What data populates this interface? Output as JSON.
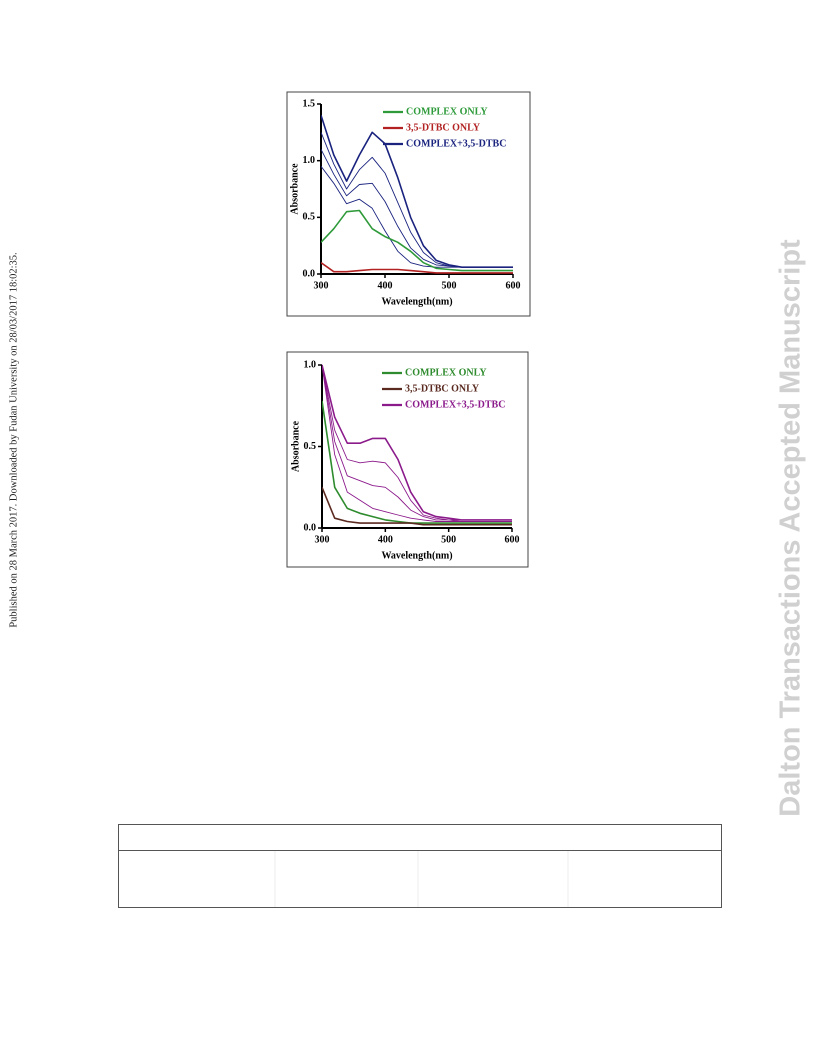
{
  "side_note": "Published on 28 March 2017. Downloaded by Fudan University on 28/03/2017 18:02:35.",
  "watermark": "Dalton Transactions Accepted Manuscript",
  "chart_data": [
    {
      "type": "line",
      "xlabel": "Wavelength(nm)",
      "ylabel": "Absorbance",
      "x": [
        300,
        320,
        340,
        360,
        380,
        400,
        420,
        440,
        460,
        480,
        500,
        520,
        540,
        560,
        580,
        600
      ],
      "xlim": [
        300,
        600
      ],
      "xticks": [
        300,
        400,
        500,
        600
      ],
      "ylim": [
        0,
        1.5
      ],
      "yticks": [
        {
          "value": 0,
          "label": "0.0"
        },
        0.5,
        {
          "value": 1,
          "label": "1.0"
        },
        1.5
      ],
      "grid": false,
      "legend": "upper right",
      "series": [
        {
          "name": "COMPLEX ONLY",
          "color": "#2e9a3a",
          "values": [
            0.28,
            0.4,
            0.55,
            0.56,
            0.4,
            0.33,
            0.28,
            0.2,
            0.1,
            0.05,
            0.04,
            0.03,
            0.03,
            0.03,
            0.03,
            0.03
          ]
        },
        {
          "name": "3,5-DTBC ONLY",
          "color": "#b22222",
          "values": [
            0.1,
            0.02,
            0.02,
            0.03,
            0.04,
            0.04,
            0.04,
            0.03,
            0.02,
            0.01,
            0.01,
            0.01,
            0.01,
            0.01,
            0.01,
            0.01
          ]
        },
        {
          "color": "#1a237e",
          "values": [
            0.95,
            0.8,
            0.62,
            0.66,
            0.58,
            0.38,
            0.2,
            0.1,
            0.07,
            0.06,
            0.06,
            0.06,
            0.06,
            0.06,
            0.06,
            0.06
          ]
        },
        {
          "color": "#1a237e",
          "values": [
            1.1,
            0.88,
            0.69,
            0.79,
            0.8,
            0.64,
            0.42,
            0.23,
            0.13,
            0.08,
            0.07,
            0.06,
            0.06,
            0.06,
            0.06,
            0.06
          ]
        },
        {
          "color": "#1a237e",
          "values": [
            1.25,
            0.97,
            0.75,
            0.92,
            1.03,
            0.89,
            0.63,
            0.37,
            0.19,
            0.1,
            0.07,
            0.06,
            0.06,
            0.06,
            0.06,
            0.06
          ]
        },
        {
          "name": "COMPLEX+3,5-DTBC",
          "color": "#1a237e",
          "values": [
            1.4,
            1.05,
            0.82,
            1.05,
            1.25,
            1.15,
            0.85,
            0.5,
            0.25,
            0.12,
            0.08,
            0.06,
            0.06,
            0.06,
            0.06,
            0.06
          ]
        }
      ]
    },
    {
      "type": "line",
      "xlabel": "Wavelength(nm)",
      "ylabel": "Absorbance",
      "x": [
        300,
        320,
        340,
        360,
        380,
        400,
        420,
        440,
        460,
        480,
        500,
        520,
        540,
        560,
        580,
        600
      ],
      "xlim": [
        300,
        600
      ],
      "xticks": [
        300,
        400,
        500,
        600
      ],
      "ylim": [
        0,
        1
      ],
      "yticks": [
        {
          "value": 0,
          "label": "0.0"
        },
        0.5,
        {
          "value": 1,
          "label": "1.0"
        }
      ],
      "grid": false,
      "legend": "upper right",
      "series": [
        {
          "name": "COMPLEX ONLY",
          "color": "#2e8b2e",
          "values": [
            0.78,
            0.25,
            0.12,
            0.09,
            0.07,
            0.05,
            0.04,
            0.03,
            0.03,
            0.03,
            0.03,
            0.03,
            0.03,
            0.03,
            0.03,
            0.03
          ]
        },
        {
          "name": "3,5-DTBC ONLY",
          "color": "#5a2a20",
          "values": [
            0.25,
            0.06,
            0.04,
            0.03,
            0.03,
            0.03,
            0.03,
            0.03,
            0.02,
            0.02,
            0.02,
            0.02,
            0.02,
            0.02,
            0.02,
            0.02
          ]
        },
        {
          "color": "#8b1a8b",
          "values": [
            1.0,
            0.45,
            0.22,
            0.17,
            0.12,
            0.1,
            0.08,
            0.06,
            0.05,
            0.04,
            0.04,
            0.04,
            0.04,
            0.04,
            0.04,
            0.04
          ]
        },
        {
          "color": "#8b1a8b",
          "values": [
            1.0,
            0.53,
            0.32,
            0.29,
            0.26,
            0.25,
            0.19,
            0.11,
            0.07,
            0.05,
            0.05,
            0.04,
            0.04,
            0.04,
            0.04,
            0.04
          ]
        },
        {
          "color": "#8b1a8b",
          "values": [
            1.0,
            0.6,
            0.42,
            0.4,
            0.41,
            0.4,
            0.31,
            0.17,
            0.08,
            0.06,
            0.05,
            0.05,
            0.05,
            0.05,
            0.05,
            0.05
          ]
        },
        {
          "name": "COMPLEX+3,5-DTBC",
          "color": "#8b1a8b",
          "values": [
            1.0,
            0.68,
            0.52,
            0.52,
            0.55,
            0.55,
            0.42,
            0.22,
            0.1,
            0.07,
            0.06,
            0.05,
            0.05,
            0.05,
            0.05,
            0.05
          ]
        }
      ]
    }
  ]
}
